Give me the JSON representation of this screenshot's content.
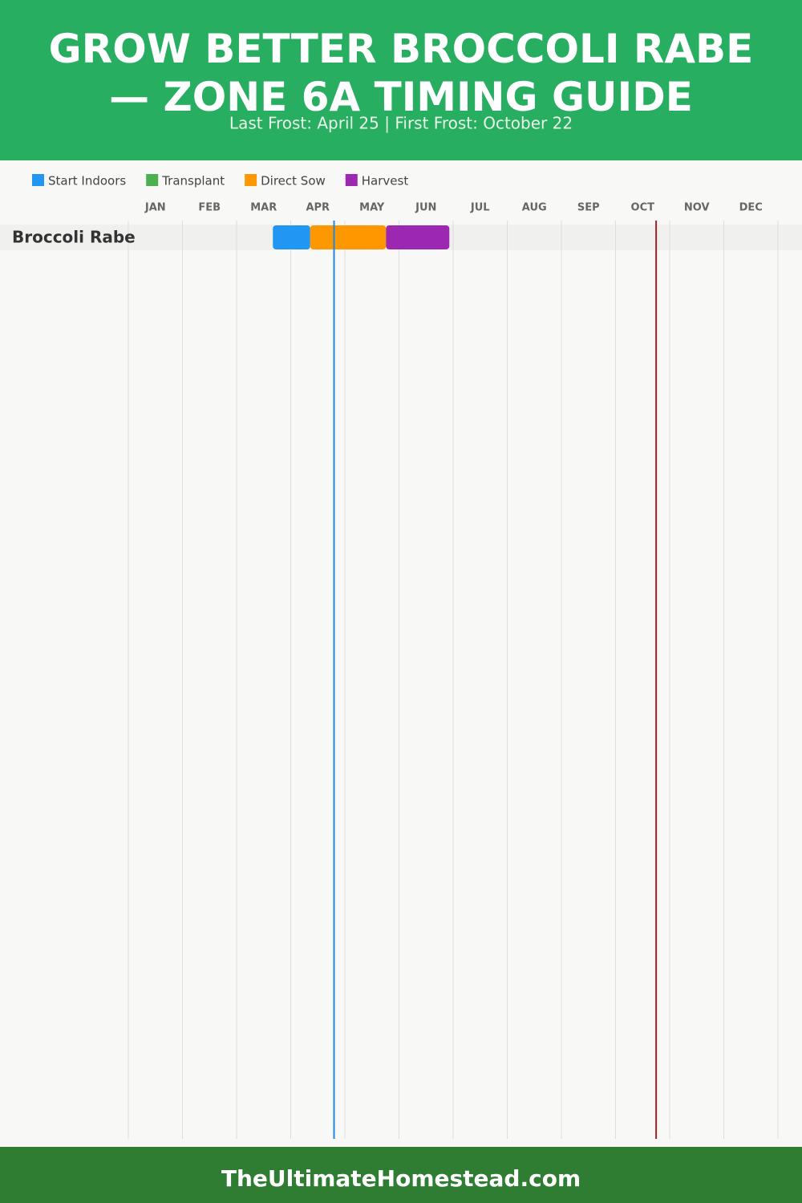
{
  "chart_data": {
    "type": "gantt",
    "title": "GROW BETTER BROCCOLI RABE — ZONE 6A TIMING GUIDE",
    "subtitle": "Last Frost: April 25 | First Frost: October 22",
    "footer": "TheUltimateHomestead.com",
    "categories": [
      "JAN",
      "FEB",
      "MAR",
      "APR",
      "MAY",
      "JUN",
      "JUL",
      "AUG",
      "SEP",
      "OCT",
      "NOV",
      "DEC"
    ],
    "xlim": [
      0,
      12
    ],
    "grid": true,
    "series": [
      {
        "name": "Start Indoors",
        "color": "#2196f3"
      },
      {
        "name": "Transplant",
        "color": "#4caf50"
      },
      {
        "name": "Direct Sow",
        "color": "#ff9800"
      },
      {
        "name": "Harvest",
        "color": "#9c27b0"
      }
    ],
    "rows": [
      {
        "name": "Broccoli Rabe",
        "segments": [
          {
            "series": 0,
            "start": 2.67,
            "end": 3.36
          },
          {
            "series": 2,
            "start": 3.36,
            "end": 4.76
          },
          {
            "series": 3,
            "start": 4.76,
            "end": 5.93
          }
        ]
      }
    ],
    "markers": [
      {
        "value": 3.8,
        "color": "#1e88e5"
      },
      {
        "value": 9.75,
        "color": "#a32020"
      }
    ]
  }
}
